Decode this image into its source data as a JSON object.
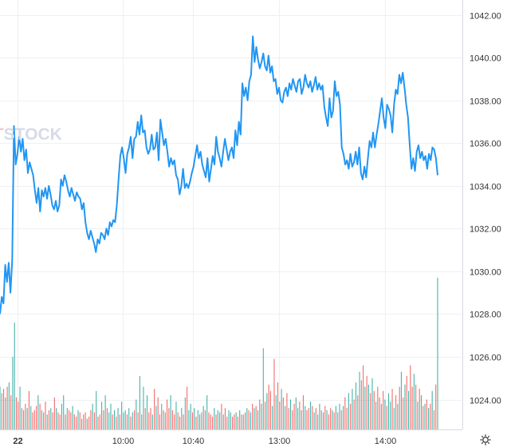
{
  "chart_data": {
    "type": "line",
    "title": "",
    "xlabel": "",
    "ylabel": "",
    "ylim": [
      1022.6,
      1042.7
    ],
    "x_ticks": [
      "22",
      "10:00",
      "10:40",
      "13:00",
      "14:00"
    ],
    "y_ticks": [
      "1042.00",
      "1040.00",
      "1038.00",
      "1036.00",
      "1034.00",
      "1032.00",
      "1030.00",
      "1028.00",
      "1026.00",
      "1024.00"
    ],
    "y_tick_values": [
      1042,
      1040,
      1038,
      1036,
      1034,
      1032,
      1030,
      1028,
      1026,
      1024
    ],
    "grid": true,
    "line_color": "#2196f3",
    "volume_up_color": "#26a69a",
    "volume_down_color": "#ef5350",
    "series": [
      {
        "values": [
          1028.0,
          1028.8,
          1028.5,
          1030.3,
          1029.5,
          1030.4,
          1029.0,
          1030.5,
          1036.8,
          1035.0,
          1035.5,
          1036.3,
          1035.6,
          1036.2,
          1035.2,
          1035.7,
          1034.6,
          1035.1,
          1034.8,
          1034.5,
          1033.8,
          1033.2,
          1033.9,
          1032.8,
          1033.8,
          1033.5,
          1033.9,
          1033.4,
          1034.0,
          1033.6,
          1033.1,
          1032.9,
          1033.3,
          1032.8,
          1033.1,
          1034.3,
          1034.0,
          1034.5,
          1034.2,
          1033.8,
          1033.5,
          1033.9,
          1033.6,
          1033.3,
          1033.7,
          1033.5,
          1033.4,
          1032.9,
          1033.2,
          1032.3,
          1031.8,
          1031.5,
          1031.9,
          1031.6,
          1031.3,
          1030.9,
          1031.5,
          1031.3,
          1031.8,
          1031.7,
          1031.5,
          1032.0,
          1031.7,
          1032.3,
          1032.1,
          1032.4,
          1032.3,
          1033.1,
          1034.3,
          1035.4,
          1035.8,
          1035.3,
          1034.6,
          1035.5,
          1035.8,
          1036.3,
          1035.3,
          1036.2,
          1036.3,
          1037.0,
          1036.4,
          1037.3,
          1036.5,
          1036.6,
          1035.8,
          1035.5,
          1035.7,
          1036.4,
          1035.7,
          1035.8,
          1036.5,
          1035.2,
          1037.1,
          1036.5,
          1035.9,
          1036.2,
          1035.6,
          1034.9,
          1035.3,
          1035.0,
          1035.2,
          1034.5,
          1034.3,
          1033.6,
          1034.0,
          1034.8,
          1033.9,
          1034.1,
          1033.9,
          1034.2,
          1034.6,
          1034.9,
          1035.4,
          1035.9,
          1035.3,
          1035.6,
          1035.0,
          1034.7,
          1034.4,
          1035.3,
          1034.2,
          1034.8,
          1035.4,
          1035.0,
          1036.3,
          1035.6,
          1035.3,
          1034.9,
          1035.6,
          1036.2,
          1035.7,
          1035.2,
          1035.6,
          1035.8,
          1035.3,
          1036.6,
          1035.9,
          1037.0,
          1036.4,
          1038.8,
          1038.2,
          1038.6,
          1038.0,
          1038.9,
          1039.2,
          1041.0,
          1039.8,
          1040.5,
          1039.9,
          1039.5,
          1039.8,
          1040.2,
          1039.6,
          1039.4,
          1040.1,
          1039.3,
          1039.6,
          1038.9,
          1039.0,
          1038.3,
          1038.6,
          1038.0,
          1037.9,
          1038.4,
          1038.6,
          1038.2,
          1038.8,
          1038.5,
          1039.0,
          1038.7,
          1038.4,
          1038.9,
          1039.0,
          1038.3,
          1038.6,
          1039.2,
          1038.8,
          1038.6,
          1038.9,
          1038.4,
          1038.7,
          1039.1,
          1038.5,
          1038.8,
          1038.5,
          1038.7,
          1037.7,
          1037.2,
          1036.8,
          1038.1,
          1037.2,
          1037.5,
          1038.9,
          1038.2,
          1038.4,
          1037.8,
          1035.8,
          1035.5,
          1035.0,
          1035.2,
          1034.8,
          1035.5,
          1034.9,
          1035.1,
          1035.6,
          1035.0,
          1035.8,
          1034.6,
          1034.3,
          1034.9,
          1034.4,
          1035.3,
          1036.1,
          1035.8,
          1036.5,
          1035.8,
          1036.4,
          1036.9,
          1037.5,
          1038.1,
          1037.2,
          1036.7,
          1037.8,
          1037.6,
          1037.3,
          1036.5,
          1037.8,
          1038.5,
          1038.3,
          1039.2,
          1038.8,
          1039.3,
          1038.6,
          1037.8,
          1037.2,
          1035.9,
          1034.8,
          1035.3,
          1034.7,
          1035.6,
          1035.9,
          1035.3,
          1035.6,
          1035.2,
          1035.4,
          1034.8,
          1035.5,
          1035.2,
          1035.8,
          1035.7,
          1035.3,
          1034.5
        ]
      }
    ],
    "volume": {
      "direction": [
        1,
        0,
        0,
        1,
        0,
        1,
        0,
        1,
        1,
        0,
        0,
        1,
        0,
        1,
        0,
        1,
        0,
        1,
        0,
        0,
        0,
        1,
        0,
        1,
        0,
        0,
        1,
        0,
        1,
        0,
        0,
        1,
        0,
        0,
        1,
        1,
        0,
        1,
        0,
        0,
        1,
        0,
        0,
        1,
        0,
        1,
        0,
        0,
        1,
        0,
        0,
        1,
        0,
        1,
        0,
        0,
        1,
        0,
        1,
        0,
        1,
        1,
        0,
        1,
        0,
        1,
        0,
        1,
        1,
        1,
        0,
        1,
        0,
        1,
        0,
        1,
        0,
        1,
        0,
        1,
        0,
        1,
        0,
        0,
        1,
        0,
        1,
        0,
        0,
        1,
        0,
        1,
        0,
        0,
        1,
        0,
        0,
        1,
        0,
        0,
        1,
        0,
        1,
        0,
        1,
        1,
        0,
        1,
        0,
        1,
        1,
        0,
        1,
        0,
        1,
        0,
        0,
        0,
        1,
        0,
        1,
        1,
        0,
        1,
        0,
        0,
        1,
        1,
        0,
        0,
        1,
        0,
        1,
        0,
        1,
        0,
        1,
        0,
        1,
        0,
        1,
        0,
        1,
        0,
        1,
        1,
        0,
        1,
        0,
        0,
        1,
        0,
        1,
        0,
        0,
        1,
        0,
        1,
        0,
        0,
        1,
        0,
        0,
        1,
        1,
        0,
        1,
        0,
        1,
        0,
        0,
        1,
        0,
        1,
        0,
        1,
        1,
        0,
        1,
        0,
        1,
        0,
        0,
        1,
        0,
        1,
        0,
        1,
        0,
        1,
        0,
        0,
        1,
        0,
        1,
        0,
        1,
        0,
        1,
        0,
        0,
        1,
        0,
        1,
        0,
        1,
        0,
        1,
        0,
        0,
        1,
        0,
        1,
        0,
        1,
        1,
        0,
        1,
        0,
        1,
        0,
        1,
        0,
        1,
        0,
        1,
        0,
        0,
        1,
        0,
        1,
        0,
        1,
        0,
        1,
        0,
        1,
        0,
        1,
        0,
        0,
        1,
        0,
        1,
        1
      ],
      "values": [
        1024.6,
        1024.3,
        1024.5,
        1024.1,
        1024.6,
        1024.8,
        1024.2,
        1026.0,
        1027.6,
        1024.1,
        1023.9,
        1024.6,
        1023.6,
        1023.5,
        1023.8,
        1023.6,
        1024.4,
        1023.7,
        1023.4,
        1023.5,
        1023.7,
        1024.2,
        1023.8,
        1023.5,
        1023.4,
        1023.9,
        1023.3,
        1023.5,
        1023.6,
        1023.4,
        1024.1,
        1023.6,
        1023.4,
        1023.3,
        1023.8,
        1024.2,
        1023.3,
        1023.6,
        1023.5,
        1023.4,
        1023.7,
        1023.3,
        1023.2,
        1023.5,
        1023.4,
        1023.1,
        1023.3,
        1023.4,
        1023.1,
        1023.2,
        1023.5,
        1023.8,
        1023.4,
        1024.4,
        1023.2,
        1023.3,
        1023.9,
        1023.5,
        1024.2,
        1023.6,
        1023.4,
        1023.8,
        1023.3,
        1023.5,
        1023.2,
        1023.6,
        1023.3,
        1023.9,
        1023.4,
        1023.5,
        1023.3,
        1023.6,
        1023.2,
        1023.4,
        1023.5,
        1024.0,
        1023.4,
        1025.1,
        1023.3,
        1024.6,
        1023.6,
        1024.2,
        1023.4,
        1023.6,
        1023.3,
        1024.5,
        1023.7,
        1024.1,
        1023.3,
        1023.8,
        1023.5,
        1023.4,
        1024.0,
        1023.6,
        1024.2,
        1023.5,
        1023.3,
        1023.9,
        1023.4,
        1023.2,
        1023.6,
        1023.3,
        1024.1,
        1024.6,
        1023.5,
        1023.8,
        1023.4,
        1023.6,
        1023.2,
        1023.5,
        1023.3,
        1023.4,
        1023.7,
        1023.5,
        1024.2,
        1023.4,
        1023.3,
        1023.2,
        1023.6,
        1023.3,
        1023.5,
        1023.4,
        1023.8,
        1023.3,
        1023.6,
        1023.2,
        1023.5,
        1023.4,
        1023.2,
        1023.3,
        1023.4,
        1023.2,
        1023.5,
        1023.3,
        1023.3,
        1023.4,
        1023.6,
        1023.5,
        1023.4,
        1023.8,
        1023.6,
        1023.7,
        1023.5,
        1024.0,
        1023.8,
        1026.4,
        1023.9,
        1024.3,
        1024.7,
        1024.4,
        1023.7,
        1025.9,
        1024.2,
        1024.8,
        1023.9,
        1024.5,
        1024.1,
        1023.7,
        1024.3,
        1023.6,
        1024.0,
        1023.5,
        1023.8,
        1024.1,
        1023.6,
        1023.9,
        1023.5,
        1024.2,
        1023.7,
        1023.5,
        1023.6,
        1023.9,
        1023.7,
        1023.4,
        1023.6,
        1023.3,
        1023.8,
        1023.5,
        1023.4,
        1023.7,
        1023.5,
        1023.3,
        1023.6,
        1023.5,
        1023.4,
        1023.7,
        1023.4,
        1023.8,
        1023.5,
        1023.7,
        1024.1,
        1023.6,
        1024.3,
        1023.8,
        1024.5,
        1024.0,
        1024.8,
        1024.2,
        1025.3,
        1024.9,
        1025.6,
        1024.6,
        1025.1,
        1024.7,
        1024.3,
        1025.0,
        1024.4,
        1023.9,
        1024.6,
        1024.1,
        1023.8,
        1024.4,
        1024.0,
        1023.7,
        1024.3,
        1023.9,
        1024.5,
        1023.6,
        1024.2,
        1023.8,
        1024.6,
        1025.3,
        1024.1,
        1024.7,
        1025.1,
        1024.4,
        1025.6,
        1024.6,
        1025.2,
        1024.7,
        1023.9,
        1024.5,
        1024.2,
        1023.7,
        1023.8,
        1024.0,
        1023.6,
        1023.8,
        1024.4,
        1023.5,
        1024.7,
        1029.7
      ]
    }
  }
}
